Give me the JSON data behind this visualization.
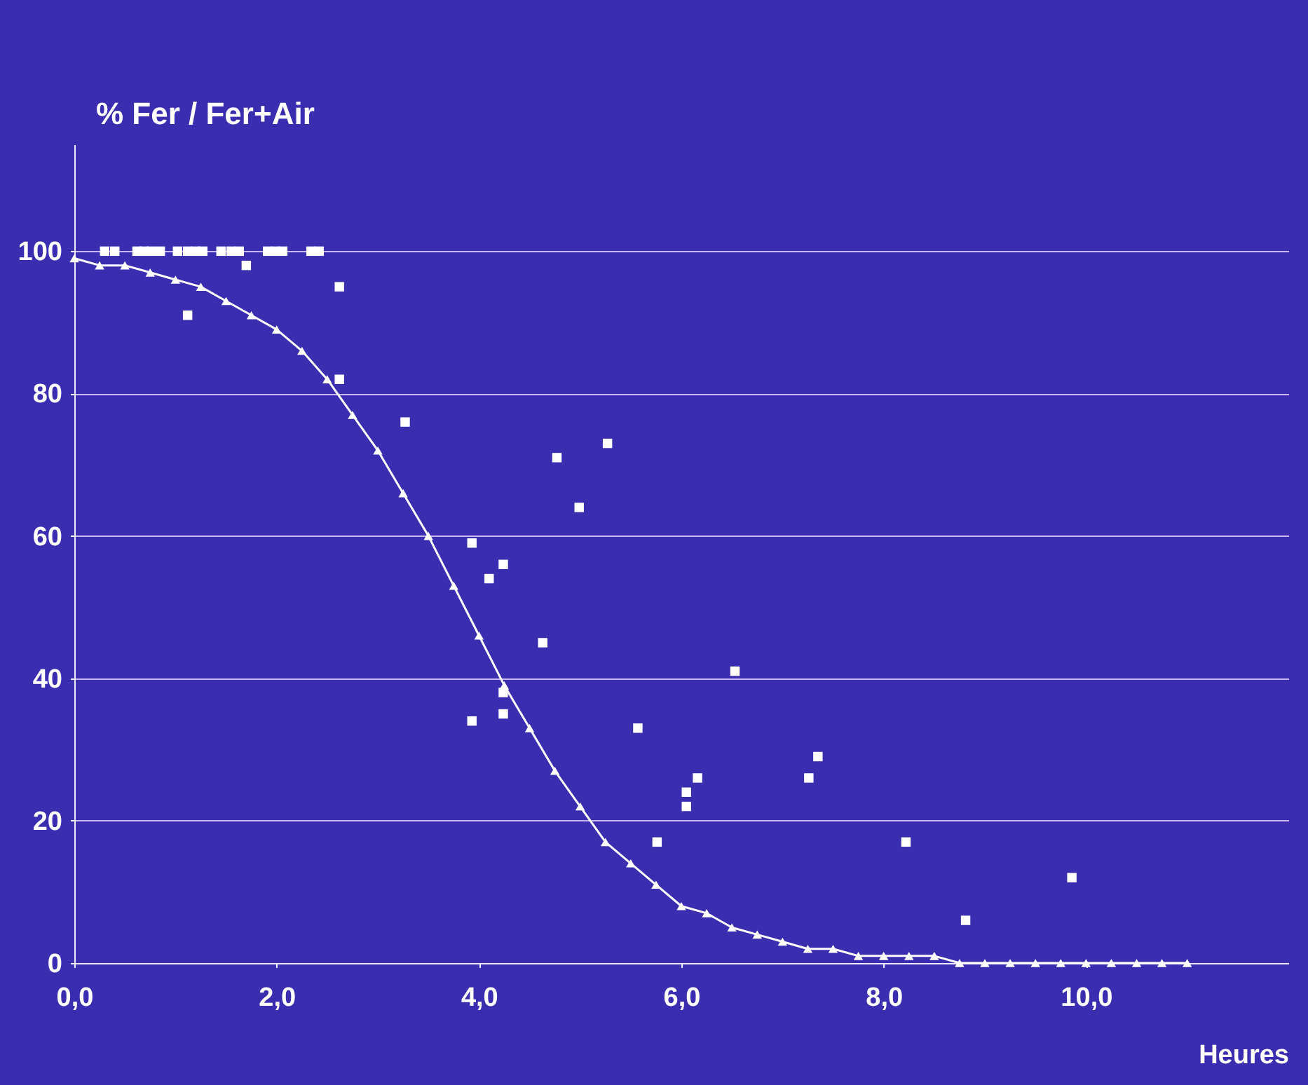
{
  "chart_data": {
    "type": "scatter",
    "xlabel": "Heures",
    "ylabel": "% Fer / Fer+Air",
    "xlim": [
      0,
      12
    ],
    "ylim": [
      0,
      115
    ],
    "xticks": [
      {
        "value": 0,
        "label": "0,0"
      },
      {
        "value": 2,
        "label": "2,0"
      },
      {
        "value": 4,
        "label": "4,0"
      },
      {
        "value": 6,
        "label": "6,0"
      },
      {
        "value": 8,
        "label": "8,0"
      },
      {
        "value": 10,
        "label": "10,0"
      }
    ],
    "yticks": [
      0,
      20,
      40,
      60,
      80,
      100
    ],
    "grid": "y",
    "series": [
      {
        "marker": "square",
        "color": "#ffffff",
        "x": [
          0.3,
          0.4,
          0.62,
          0.69,
          0.76,
          0.85,
          1.02,
          1.12,
          1.2,
          1.27,
          1.45,
          1.55,
          1.63,
          1.7,
          1.91,
          1.99,
          2.06,
          2.34,
          2.42,
          1.12,
          2.62,
          2.62,
          3.27,
          5.27,
          4.77,
          4.99,
          3.93,
          4.24,
          4.1,
          4.63,
          6.53,
          4.24,
          3.93,
          4.24,
          5.57,
          7.35,
          7.26,
          6.16,
          6.05,
          6.05,
          5.76,
          8.22,
          9.86,
          8.81
        ],
        "values": [
          100,
          100,
          100,
          100,
          100,
          100,
          100,
          100,
          100,
          100,
          100,
          100,
          100,
          98,
          100,
          100,
          100,
          100,
          100,
          91,
          95,
          82,
          76,
          73,
          71,
          64,
          59,
          56,
          54,
          45,
          41,
          38,
          34,
          35,
          33,
          29,
          26,
          26,
          24,
          22,
          17,
          17,
          12,
          6
        ]
      },
      {
        "type": "line",
        "marker": "triangle",
        "line_style": "solid",
        "color": "#ffffff",
        "x": [
          0,
          0.25,
          0.5,
          0.75,
          1,
          1.25,
          1.5,
          1.75,
          2,
          2.25,
          2.5,
          2.75,
          3,
          3.25,
          3.5,
          3.75,
          4,
          4.25,
          4.5,
          4.75,
          5,
          5.25,
          5.5,
          5.75,
          6,
          6.25,
          6.5,
          6.75,
          7,
          7.25,
          7.5,
          7.75,
          8,
          8.25,
          8.5,
          8.75,
          9,
          9.25,
          9.5,
          9.75,
          10,
          10.25,
          10.5,
          10.75,
          11
        ],
        "values": [
          99,
          98,
          98,
          97,
          96,
          95,
          93,
          91,
          89,
          86,
          82,
          77,
          72,
          66,
          60,
          53,
          46,
          39,
          33,
          27,
          22,
          17,
          14,
          11,
          8,
          7,
          5,
          4,
          3,
          2,
          2,
          1,
          1,
          1,
          1,
          0,
          0,
          0,
          0,
          0,
          0,
          0,
          0,
          0,
          0
        ]
      }
    ]
  }
}
